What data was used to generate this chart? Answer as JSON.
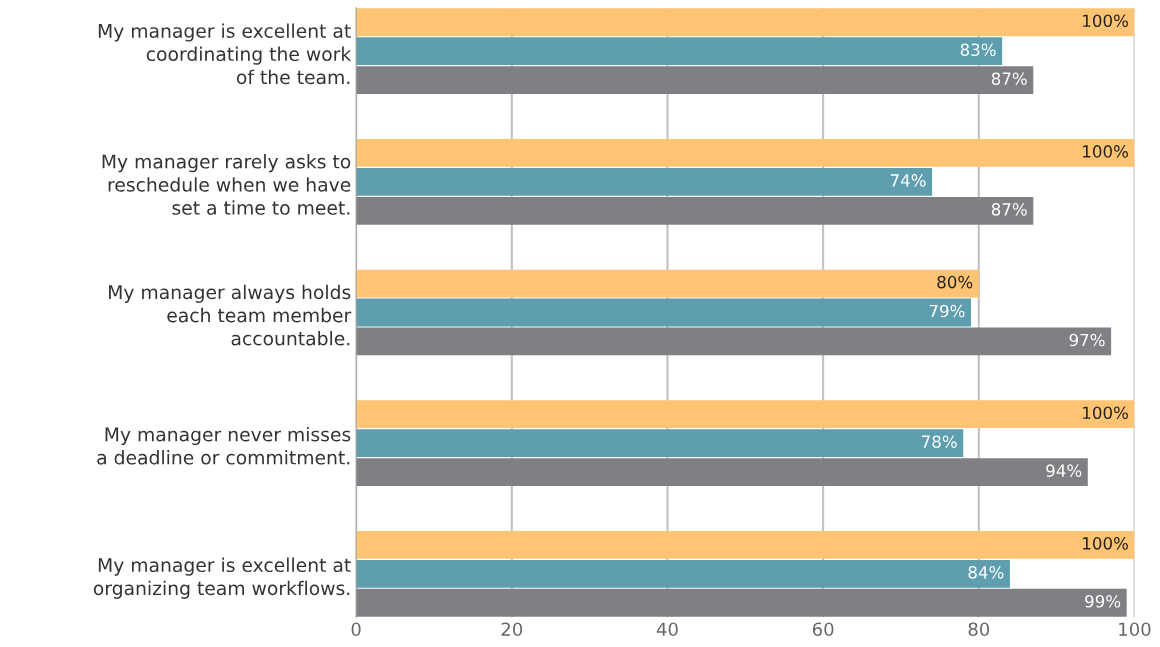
{
  "chart_data": {
    "type": "bar",
    "orientation": "horizontal",
    "categories": [
      "My manager is excellent at\ncoordinating the work\nof the team.",
      "My manager rarely asks to\nreschedule when we have\nset a time to meet.",
      "My manager always holds\neach team member\naccountable.",
      "My manager never misses\na deadline or commitment.",
      "My manager is excellent at\norganizing team workflows."
    ],
    "series": [
      {
        "color": "#ffc374",
        "values": [
          100,
          100,
          80,
          100,
          100
        ],
        "value_labels": [
          "100%",
          "100%",
          "80%",
          "100%",
          "100%"
        ]
      },
      {
        "color": "#5f9eaf",
        "values": [
          83,
          74,
          79,
          78,
          84
        ],
        "value_labels": [
          "83%",
          "74%",
          "79%",
          "78%",
          "84%"
        ]
      },
      {
        "color": "#808084",
        "values": [
          87,
          87,
          97,
          94,
          99
        ],
        "value_labels": [
          "87%",
          "87%",
          "97%",
          "94%",
          "99%"
        ]
      }
    ],
    "xlim": [
      0,
      100
    ],
    "xticks": [
      0,
      20,
      40,
      60,
      80,
      100
    ],
    "grid": "x"
  }
}
